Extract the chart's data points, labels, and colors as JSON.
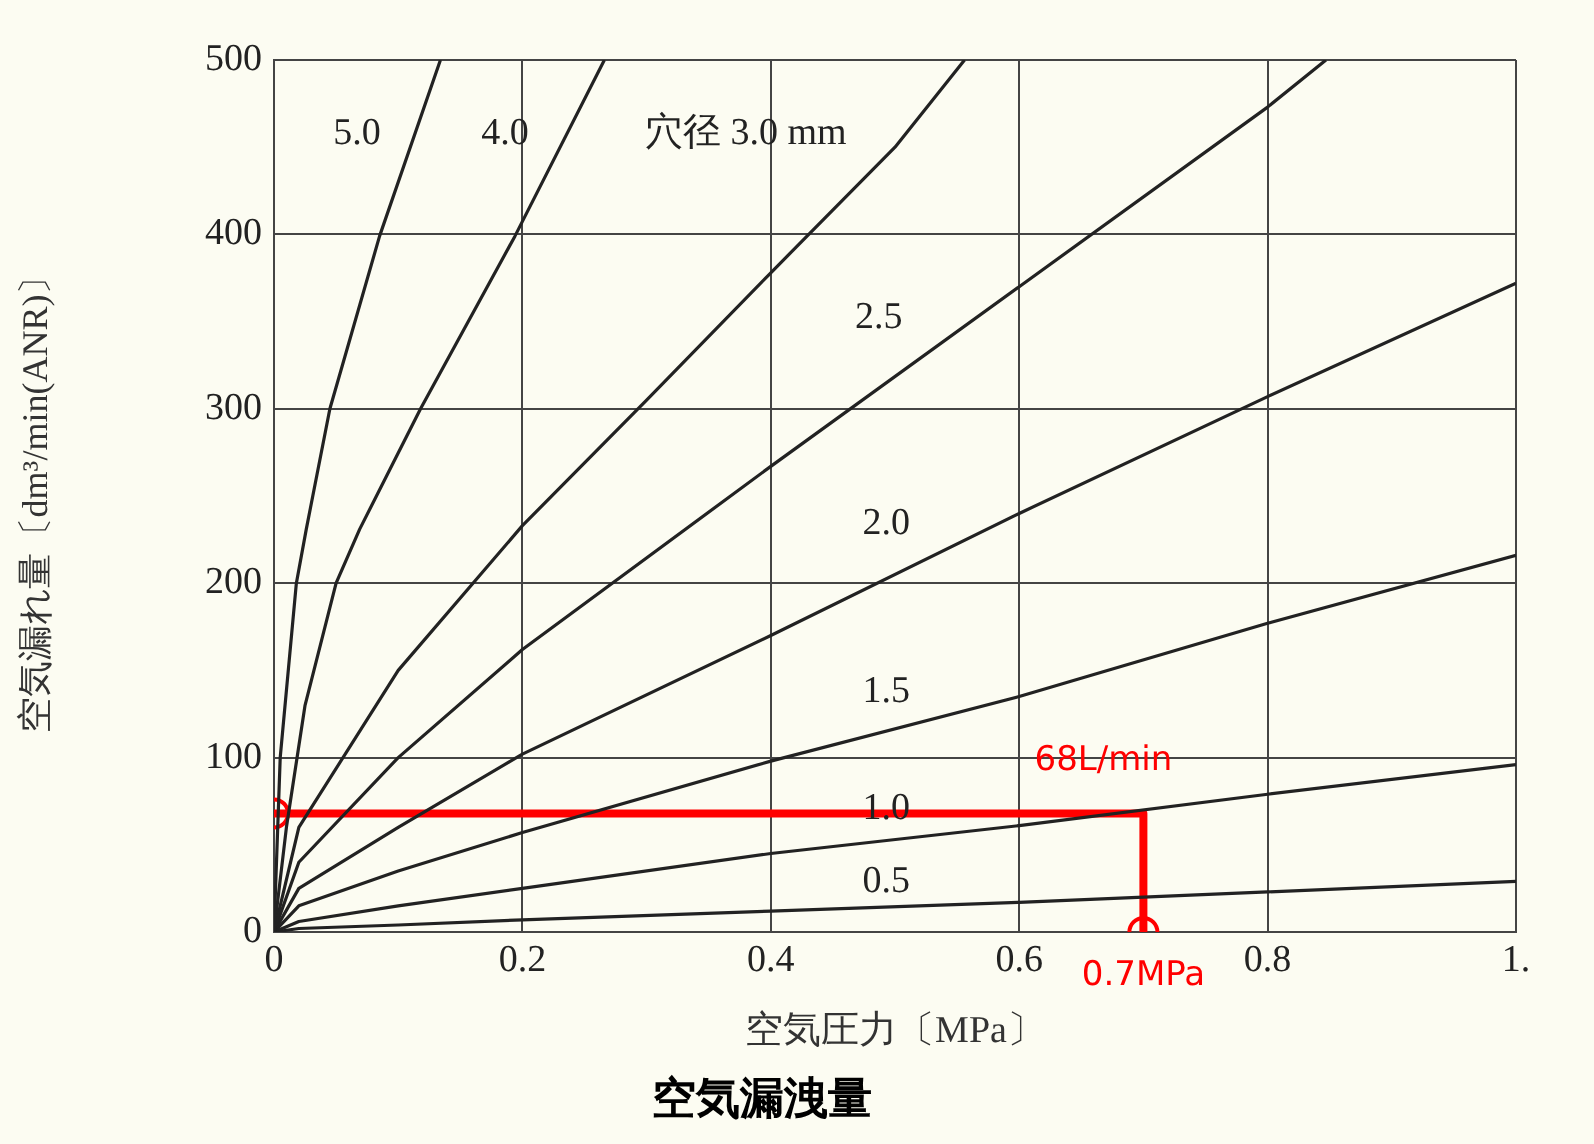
{
  "chart_data": {
    "type": "line",
    "title": "空気漏洩量",
    "xlabel": "空気圧力〔MPa〕",
    "ylabel": "空気漏れ量〔dm³/min(ANR)〕",
    "xlim": [
      0,
      1
    ],
    "xticks": [
      0,
      0.2,
      0.4,
      0.6,
      0.8,
      {
        "value": 1,
        "label": "1."
      }
    ],
    "ylim": [
      0,
      500
    ],
    "yticks": [
      0,
      100,
      200,
      300,
      400,
      500
    ],
    "grid": true,
    "marker": "none",
    "line_style": "solid",
    "series": [
      {
        "color": "#222222",
        "x": [
          0,
          0.005,
          0.018,
          0.026,
          0.045,
          0.085,
          0.134
        ],
        "values": [
          0,
          100,
          200,
          231,
          300,
          399,
          500
        ]
      },
      {
        "color": "#222222",
        "x": [
          0,
          0.01,
          0.025,
          0.05,
          0.069,
          0.118,
          0.194,
          0.266
        ],
        "values": [
          0,
          60,
          130,
          200,
          231,
          300,
          399,
          500
        ]
      },
      {
        "color": "#222222",
        "x": [
          0,
          0.02,
          0.1,
          0.2,
          0.3,
          0.4,
          0.5,
          0.556
        ],
        "values": [
          0,
          60,
          150,
          233,
          305,
          378,
          450,
          500
        ]
      },
      {
        "color": "#222222",
        "x": [
          0,
          0.02,
          0.1,
          0.2,
          0.4,
          0.6,
          0.8,
          0.847
        ],
        "values": [
          0,
          40,
          100,
          162,
          267,
          370,
          473,
          500
        ]
      },
      {
        "color": "#222222",
        "x": [
          0,
          0.02,
          0.1,
          0.2,
          0.4,
          0.6,
          0.8,
          1.0
        ],
        "values": [
          0,
          25,
          60,
          102,
          170,
          240,
          307,
          372
        ]
      },
      {
        "color": "#222222",
        "x": [
          0,
          0.02,
          0.1,
          0.2,
          0.4,
          0.6,
          0.8,
          1.0
        ],
        "values": [
          0,
          15,
          35,
          57,
          98,
          135,
          177,
          216
        ]
      },
      {
        "color": "#222222",
        "x": [
          0,
          0.02,
          0.1,
          0.2,
          0.4,
          0.6,
          0.8,
          1.0
        ],
        "values": [
          0,
          6,
          15,
          25,
          45,
          61,
          79,
          96
        ]
      },
      {
        "color": "#222222",
        "x": [
          0,
          0.02,
          0.1,
          0.2,
          0.4,
          0.6,
          0.8,
          1.0
        ],
        "values": [
          0,
          2,
          4,
          7,
          12,
          17,
          23,
          29
        ]
      },
      {
        "color": "#ff0000",
        "x": [
          0,
          0.7,
          0.7
        ],
        "values": [
          68,
          68,
          0
        ]
      },
      {
        "type": "scatter",
        "color": "#ff0000",
        "marker": "circle",
        "x": [
          0,
          0.7
        ],
        "values": [
          68,
          0
        ]
      }
    ],
    "annotations": [
      {
        "text": "5.0",
        "x": 0.115,
        "y": 444
      },
      {
        "text": "4.0",
        "x": 0.234,
        "y": 444
      },
      {
        "text": "穴径 3.0 mm",
        "x": 0.49,
        "y": 444
      },
      {
        "text": "2.5",
        "x": 0.535,
        "y": 338
      },
      {
        "text": "2.0",
        "x": 0.541,
        "y": 220
      },
      {
        "text": "1.5",
        "x": 0.541,
        "y": 124
      },
      {
        "text": "1.0",
        "x": 0.541,
        "y": 57
      },
      {
        "text": "0.5",
        "x": 0.541,
        "y": 15
      },
      {
        "text": "68L/min",
        "x": 0.7,
        "y": 68
      },
      {
        "text": "0.7MPa",
        "x": 0.7,
        "y": 0
      }
    ]
  }
}
